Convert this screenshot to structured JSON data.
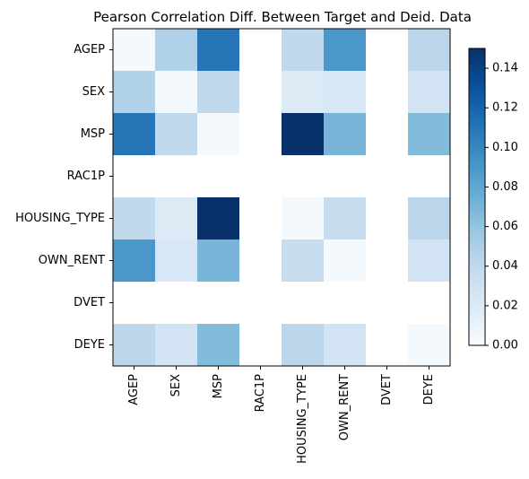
{
  "chart_data": {
    "type": "heatmap",
    "title": "Pearson Correlation Diff. Between Target and Deid. Data",
    "xlabel": "",
    "ylabel": "",
    "x_categories": [
      "AGEP",
      "SEX",
      "MSP",
      "RAC1P",
      "HOUSING_TYPE",
      "OWN_RENT",
      "DVET",
      "DEYE"
    ],
    "y_categories": [
      "AGEP",
      "SEX",
      "MSP",
      "RAC1P",
      "HOUSING_TYPE",
      "OWN_RENT",
      "DVET",
      "DEYE"
    ],
    "values": [
      [
        0.002,
        0.048,
        0.11,
        null,
        0.04,
        0.09,
        null,
        0.042
      ],
      [
        0.048,
        0.002,
        0.04,
        null,
        0.02,
        0.024,
        null,
        0.028
      ],
      [
        0.11,
        0.04,
        0.002,
        null,
        0.15,
        0.07,
        null,
        0.066
      ],
      [
        null,
        null,
        null,
        null,
        null,
        null,
        null,
        null
      ],
      [
        0.04,
        0.02,
        0.15,
        null,
        0.002,
        0.036,
        null,
        0.042
      ],
      [
        0.09,
        0.024,
        0.07,
        null,
        0.036,
        0.002,
        null,
        0.028
      ],
      [
        null,
        null,
        null,
        null,
        null,
        null,
        null,
        null
      ],
      [
        0.042,
        0.028,
        0.066,
        null,
        0.042,
        0.028,
        null,
        0.002
      ]
    ],
    "colorbar": {
      "colormap": "Blues",
      "range": [
        0.0,
        0.15
      ],
      "ticks": [
        0.0,
        0.02,
        0.04,
        0.06,
        0.08,
        0.1,
        0.12,
        0.14
      ],
      "tick_labels": [
        "0.00",
        "0.02",
        "0.04",
        "0.06",
        "0.08",
        "0.10",
        "0.12",
        "0.14"
      ]
    },
    "grid": false
  }
}
